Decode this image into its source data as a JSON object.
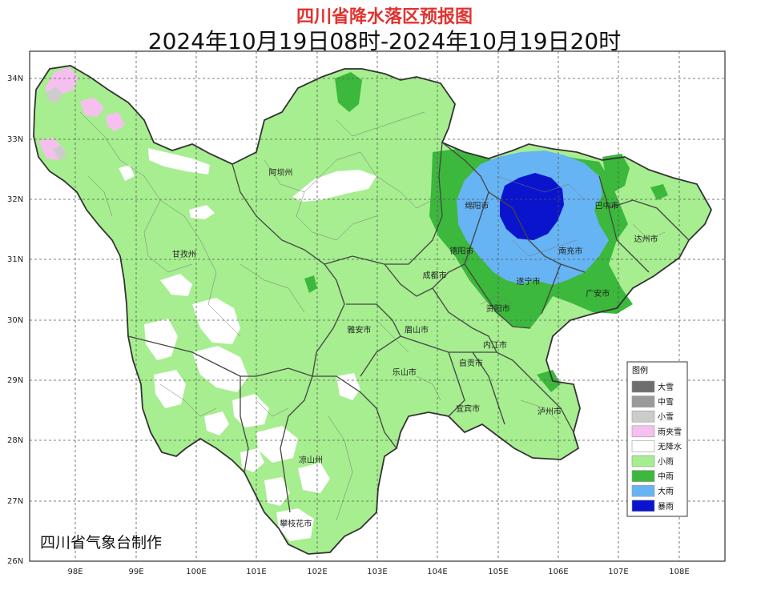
{
  "title": "四川省降水落区预报图",
  "subtitle": "2024年10月19日08时-2024年10月19日20时",
  "credit": "四川省气象台制作",
  "legend": {
    "title": "图例",
    "items": [
      {
        "label": "大雪",
        "color": "#6e6e6e"
      },
      {
        "label": "中雪",
        "color": "#9a9a9a"
      },
      {
        "label": "小雪",
        "color": "#cccccc"
      },
      {
        "label": "雨夹雪",
        "color": "#f6c0ee"
      },
      {
        "label": "无降水",
        "color": "#ffffff"
      },
      {
        "label": "小雨",
        "color": "#a6ee8f"
      },
      {
        "label": "中雨",
        "color": "#3cb83c"
      },
      {
        "label": "大雨",
        "color": "#66b4f4"
      },
      {
        "label": "暴雨",
        "color": "#0a14cc"
      }
    ]
  },
  "axes": {
    "lat": [
      "34N",
      "33N",
      "32N",
      "31N",
      "30N",
      "29N",
      "28N",
      "27N",
      "26N"
    ],
    "lon": [
      "98E",
      "99E",
      "100E",
      "101E",
      "102E",
      "103E",
      "104E",
      "105E",
      "106E",
      "107E",
      "108E"
    ]
  },
  "cities": [
    {
      "name": "阿坝州",
      "lon": 101.4,
      "lat": 32.4
    },
    {
      "name": "甘孜州",
      "lon": 99.8,
      "lat": 31.05
    },
    {
      "name": "绵阳市",
      "lon": 104.65,
      "lat": 31.85
    },
    {
      "name": "巴中市",
      "lon": 106.8,
      "lat": 31.85
    },
    {
      "name": "德阳市",
      "lon": 104.4,
      "lat": 31.1
    },
    {
      "name": "达州市",
      "lon": 107.45,
      "lat": 31.3
    },
    {
      "name": "南充市",
      "lon": 106.2,
      "lat": 31.1
    },
    {
      "name": "成都市",
      "lon": 103.95,
      "lat": 30.7
    },
    {
      "name": "遂宁市",
      "lon": 105.5,
      "lat": 30.6
    },
    {
      "name": "广安市",
      "lon": 106.65,
      "lat": 30.4
    },
    {
      "name": "资阳市",
      "lon": 105.0,
      "lat": 30.15
    },
    {
      "name": "雅安市",
      "lon": 102.7,
      "lat": 29.8
    },
    {
      "name": "眉山市",
      "lon": 103.65,
      "lat": 29.8
    },
    {
      "name": "内江市",
      "lon": 104.95,
      "lat": 29.55
    },
    {
      "name": "乐山市",
      "lon": 103.45,
      "lat": 29.1
    },
    {
      "name": "自贡市",
      "lon": 104.55,
      "lat": 29.25
    },
    {
      "name": "宜宾市",
      "lon": 104.5,
      "lat": 28.5
    },
    {
      "name": "泸州市",
      "lon": 105.85,
      "lat": 28.45
    },
    {
      "name": "凉山州",
      "lon": 101.9,
      "lat": 27.65
    },
    {
      "name": "攀枝花市",
      "lon": 101.65,
      "lat": 26.6
    }
  ]
}
